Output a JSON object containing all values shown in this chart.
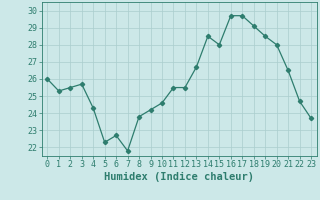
{
  "x": [
    0,
    1,
    2,
    3,
    4,
    5,
    6,
    7,
    8,
    9,
    10,
    11,
    12,
    13,
    14,
    15,
    16,
    17,
    18,
    19,
    20,
    21,
    22,
    23
  ],
  "y": [
    26.0,
    25.3,
    25.5,
    25.7,
    24.3,
    22.3,
    22.7,
    21.8,
    23.8,
    24.2,
    24.6,
    25.5,
    25.5,
    26.7,
    28.5,
    28.0,
    29.7,
    29.7,
    29.1,
    28.5,
    28.0,
    26.5,
    24.7,
    23.7
  ],
  "line_color": "#2e7d6e",
  "marker": "D",
  "marker_size": 2.2,
  "bg_color": "#cce8e8",
  "grid_color": "#aacece",
  "xlabel": "Humidex (Indice chaleur)",
  "ylim": [
    21.5,
    30.5
  ],
  "xlim": [
    -0.5,
    23.5
  ],
  "yticks": [
    22,
    23,
    24,
    25,
    26,
    27,
    28,
    29,
    30
  ],
  "xticks": [
    0,
    1,
    2,
    3,
    4,
    5,
    6,
    7,
    8,
    9,
    10,
    11,
    12,
    13,
    14,
    15,
    16,
    17,
    18,
    19,
    20,
    21,
    22,
    23
  ],
  "tick_color": "#2e7d6e",
  "label_color": "#2e7d6e",
  "font_size": 6.0,
  "xlabel_fontsize": 7.5
}
